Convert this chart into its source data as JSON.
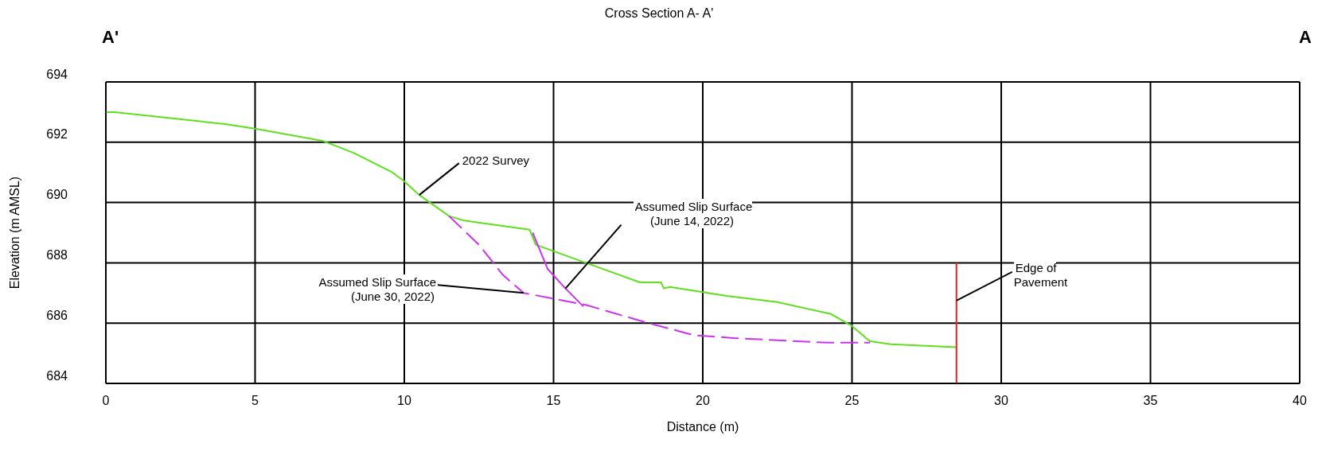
{
  "chart_data": {
    "type": "line",
    "title": "Cross Section A- A'",
    "xlabel": "Distance (m)",
    "ylabel": "Elevation (m AMSL)",
    "xlim": [
      0,
      40
    ],
    "xticks": [
      0,
      5,
      10,
      15,
      20,
      25,
      30,
      35,
      40
    ],
    "ylim": [
      684,
      694
    ],
    "yticks": [
      684,
      686,
      688,
      690,
      692,
      694
    ],
    "grid": true,
    "marker": "none",
    "series": [
      {
        "color": "#5ee01c",
        "line_style": "solid",
        "x": [
          0,
          0.3,
          4.0,
          5.0,
          7.25,
          8.3,
          9.6,
          10.0,
          10.5,
          11.5,
          12.0,
          14.2,
          14.4,
          17.9,
          18.6,
          18.7,
          18.9,
          20.8,
          22.5,
          24.3,
          25.0,
          25.6,
          26.3,
          28.5
        ],
        "values": [
          693.0,
          693.0,
          692.6,
          692.45,
          692.05,
          691.65,
          691.0,
          690.7,
          690.25,
          689.55,
          689.4,
          689.1,
          688.6,
          687.35,
          687.35,
          687.15,
          687.2,
          686.9,
          686.7,
          686.3,
          685.9,
          685.4,
          685.3,
          685.2
        ]
      },
      {
        "color": "#cc33ee",
        "line_style": "solid",
        "x": [
          14.3,
          14.8,
          15.4,
          16.0
        ],
        "values": [
          689.0,
          687.8,
          687.15,
          686.55
        ]
      },
      {
        "color": "#cc33ee",
        "line_style": "dashed",
        "x": [
          11.5,
          12.5,
          13.3,
          14.0,
          16.1,
          18.0,
          19.7,
          21.1,
          24.2,
          25.6
        ],
        "values": [
          689.55,
          688.6,
          687.6,
          687.0,
          686.6,
          686.05,
          685.6,
          685.5,
          685.35,
          685.35
        ]
      },
      {
        "color": "#e8251f",
        "line_style": "solid",
        "x": [
          28.5,
          28.5
        ],
        "values": [
          684.0,
          688.0
        ]
      }
    ],
    "annotations": [
      "A'",
      "A",
      {
        "text": "2022 Survey",
        "x": 10.5,
        "y": 690.25
      },
      {
        "text": "Assumed Slip Surface (June 14, 2022)",
        "x": 15.4,
        "y": 687.15
      },
      {
        "text": "Assumed Slip Surface (June 30, 2022)",
        "x": 14.0,
        "y": 687.0
      },
      {
        "text": "Edge of Pavement",
        "x": 28.5,
        "y": 686.75
      }
    ]
  }
}
